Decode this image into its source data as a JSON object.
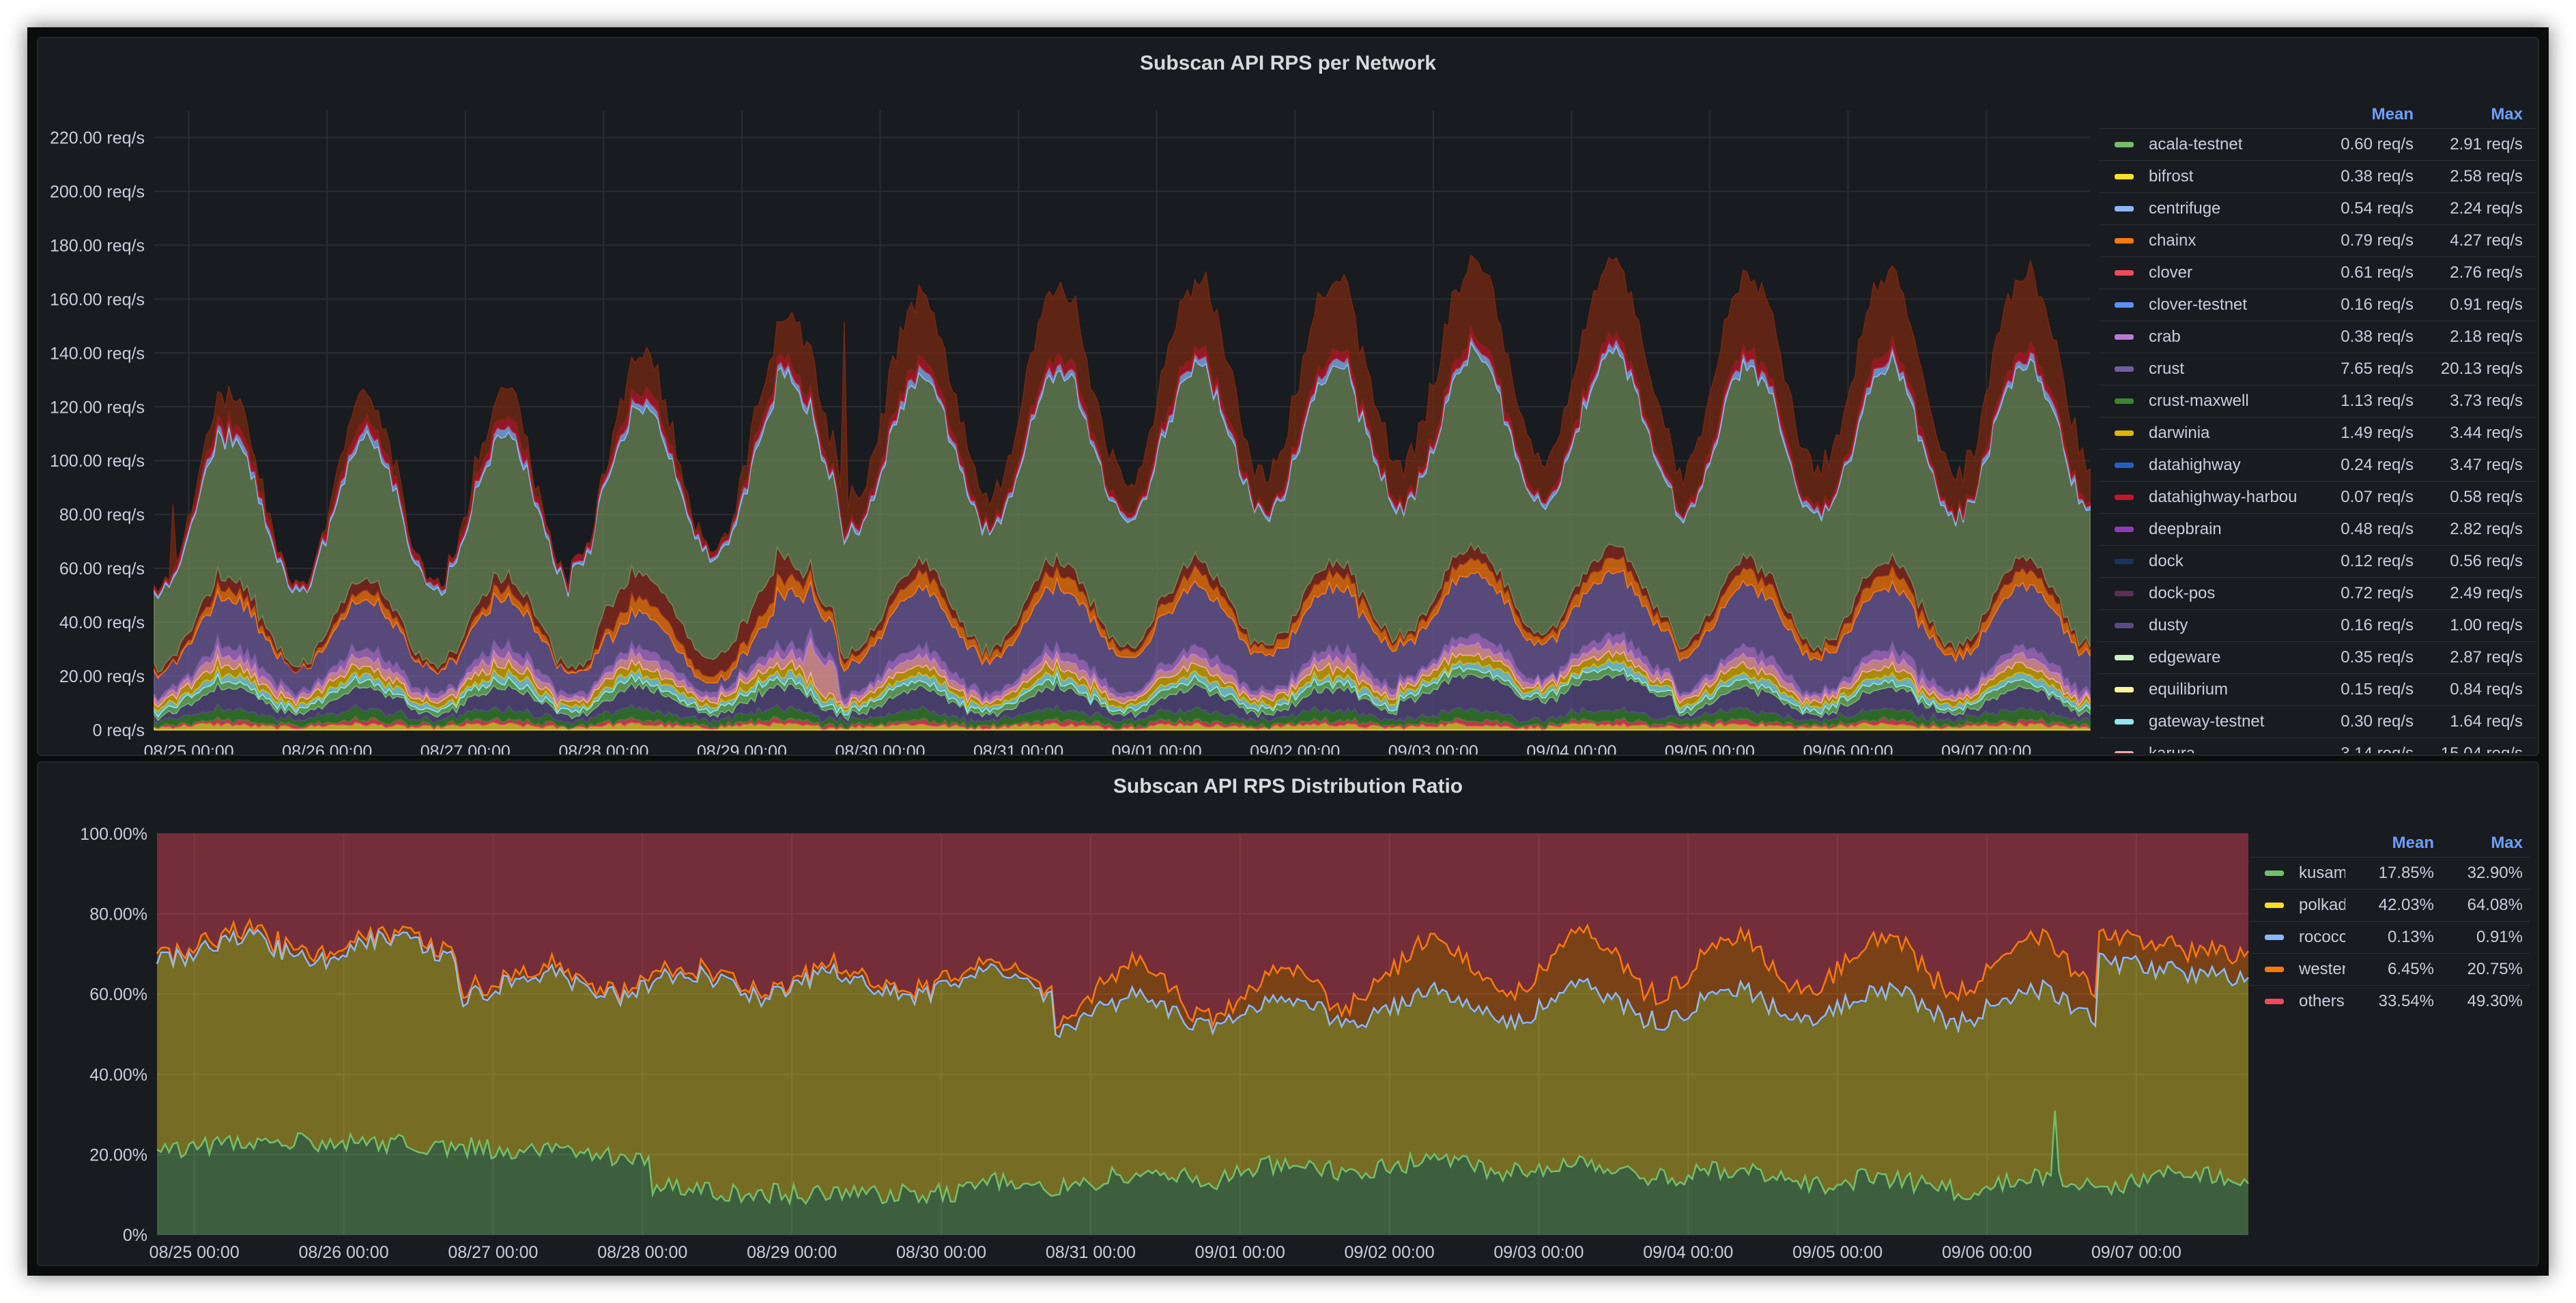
{
  "panels": {
    "top": {
      "title": "Subscan API RPS per Network"
    },
    "bottom": {
      "title": "Subscan API RPS Distribution Ratio"
    }
  },
  "legend_headers": {
    "mean": "Mean",
    "max": "Max"
  },
  "chart_data": [
    {
      "type": "area",
      "stacked": true,
      "title": "Subscan API RPS per Network",
      "ylim": [
        0,
        230
      ],
      "yticks": [
        0,
        20,
        40,
        60,
        80,
        100,
        120,
        140,
        160,
        180,
        200,
        220
      ],
      "ytick_labels": [
        "0 req/s",
        "20.00 req/s",
        "40.00 req/s",
        "60.00 req/s",
        "80.00 req/s",
        "100.00 req/s",
        "120.00 req/s",
        "140.00 req/s",
        "160.00 req/s",
        "180.00 req/s",
        "200.00 req/s",
        "220.00 req/s"
      ],
      "x_range": [
        "2021-08-24T18:00",
        "2021-09-07T18:00"
      ],
      "xtick_labels": [
        "08/25 00:00",
        "08/26 00:00",
        "08/27 00:00",
        "08/28 00:00",
        "08/29 00:00",
        "08/30 00:00",
        "08/31 00:00",
        "09/01 00:00",
        "09/02 00:00",
        "09/03 00:00",
        "09/04 00:00",
        "09/05 00:00",
        "09/06 00:00",
        "09/07 00:00"
      ],
      "grid": true,
      "legend_position": "right",
      "series": [
        {
          "name": "acala-testnet",
          "color": "#73bf69",
          "mean": "0.60 req/s",
          "max": "2.91 req/s"
        },
        {
          "name": "bifrost",
          "color": "#fade2a",
          "mean": "0.38 req/s",
          "max": "2.58 req/s"
        },
        {
          "name": "centrifuge",
          "color": "#8ab8ff",
          "mean": "0.54 req/s",
          "max": "2.24 req/s"
        },
        {
          "name": "chainx",
          "color": "#ff780a",
          "mean": "0.79 req/s",
          "max": "4.27 req/s"
        },
        {
          "name": "clover",
          "color": "#f2495c",
          "mean": "0.61 req/s",
          "max": "2.76 req/s"
        },
        {
          "name": "clover-testnet",
          "color": "#5794f2",
          "mean": "0.16 req/s",
          "max": "0.91 req/s"
        },
        {
          "name": "crab",
          "color": "#b877d9",
          "mean": "0.38 req/s",
          "max": "2.18 req/s"
        },
        {
          "name": "crust",
          "color": "#705da0",
          "mean": "7.65 req/s",
          "max": "20.13 req/s"
        },
        {
          "name": "crust-maxwell",
          "color": "#37872d",
          "mean": "1.13 req/s",
          "max": "3.73 req/s"
        },
        {
          "name": "darwinia",
          "color": "#e0b400",
          "mean": "1.49 req/s",
          "max": "3.44 req/s"
        },
        {
          "name": "datahighway",
          "color": "#1f60c4",
          "mean": "0.24 req/s",
          "max": "3.47 req/s"
        },
        {
          "name": "datahighway-harbour",
          "color": "#c4162a",
          "mean": "0.07 req/s",
          "max": "0.58 req/s"
        },
        {
          "name": "deepbrain",
          "color": "#8f3bb8",
          "mean": "0.48 req/s",
          "max": "2.82 req/s"
        },
        {
          "name": "dock",
          "color": "#19355f",
          "mean": "0.12 req/s",
          "max": "0.56 req/s"
        },
        {
          "name": "dock-pos",
          "color": "#5a2e55",
          "mean": "0.72 req/s",
          "max": "2.49 req/s"
        },
        {
          "name": "dusty",
          "color": "#5a4b86",
          "mean": "0.16 req/s",
          "max": "1.00 req/s"
        },
        {
          "name": "edgeware",
          "color": "#c8f2c2",
          "mean": "0.35 req/s",
          "max": "2.87 req/s"
        },
        {
          "name": "equilibrium",
          "color": "#fff899",
          "mean": "0.15 req/s",
          "max": "0.84 req/s"
        },
        {
          "name": "gateway-testnet",
          "color": "#8ee8f0",
          "mean": "0.30 req/s",
          "max": "1.64 req/s"
        },
        {
          "name": "karura",
          "color": "#ffa6a6",
          "mean": "3.14 req/s",
          "max": "15.04 req/s"
        }
      ]
    },
    {
      "type": "area",
      "stacked": true,
      "title": "Subscan API RPS Distribution Ratio",
      "ylim": [
        0,
        100
      ],
      "yticks": [
        0,
        20,
        40,
        60,
        80,
        100
      ],
      "ytick_labels": [
        "0%",
        "20.00%",
        "40.00%",
        "60.00%",
        "80.00%",
        "100.00%"
      ],
      "x_range": [
        "2021-08-24T18:00",
        "2021-09-07T18:00"
      ],
      "xtick_labels": [
        "08/25 00:00",
        "08/26 00:00",
        "08/27 00:00",
        "08/28 00:00",
        "08/29 00:00",
        "08/30 00:00",
        "08/31 00:00",
        "09/01 00:00",
        "09/02 00:00",
        "09/03 00:00",
        "09/04 00:00",
        "09/05 00:00",
        "09/06 00:00",
        "09/07 00:00"
      ],
      "grid": true,
      "legend_position": "right",
      "series": [
        {
          "name": "kusama",
          "color": "#73bf69",
          "mean": "17.85%",
          "max": "32.90%"
        },
        {
          "name": "polkadot",
          "color": "#fade2a",
          "mean": "42.03%",
          "max": "64.08%"
        },
        {
          "name": "rococo",
          "color": "#8ab8ff",
          "mean": "0.13%",
          "max": "0.91%"
        },
        {
          "name": "westend",
          "color": "#ff780a",
          "mean": "6.45%",
          "max": "20.75%"
        },
        {
          "name": "others",
          "color": "#f2495c",
          "mean": "33.54%",
          "max": "49.30%"
        }
      ]
    }
  ]
}
